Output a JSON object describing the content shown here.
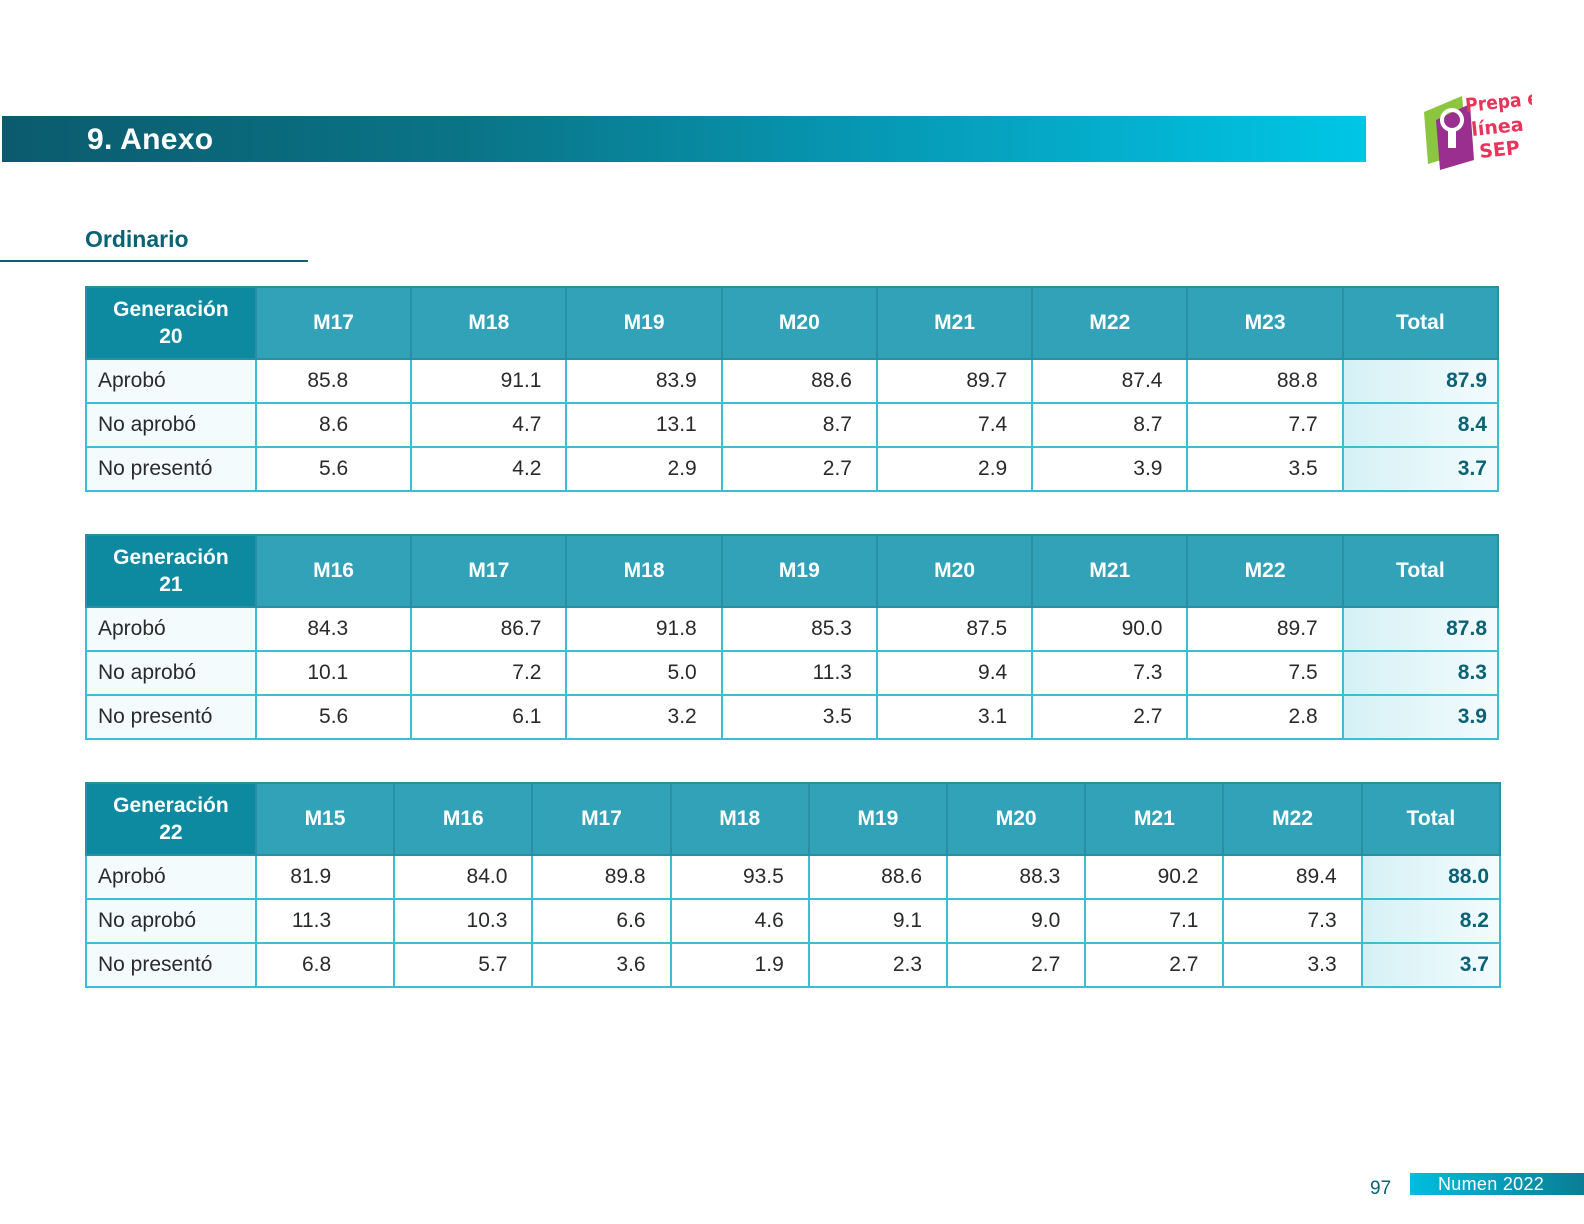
{
  "section": {
    "title": "9. Anexo"
  },
  "logo": {
    "line1": "Prepa en",
    "line2": "línea",
    "line3": "SEP"
  },
  "subtitle": "Ordinario",
  "tables": [
    {
      "generation": [
        "Generación",
        "20"
      ],
      "columns": [
        "M17",
        "M18",
        "M19",
        "M20",
        "M21",
        "M22",
        "M23"
      ],
      "total_label": "Total",
      "rows": [
        {
          "label": "Aprobó",
          "values": [
            "85.8",
            "91.1",
            "83.9",
            "88.6",
            "89.7",
            "87.4",
            "88.8"
          ],
          "total": "87.9"
        },
        {
          "label": "No aprobó",
          "values": [
            "8.6",
            "4.7",
            "13.1",
            "8.7",
            "7.4",
            "8.7",
            "7.7"
          ],
          "total": "8.4"
        },
        {
          "label": "No presentó",
          "values": [
            "5.6",
            "4.2",
            "2.9",
            "2.7",
            "2.9",
            "3.9",
            "3.5"
          ],
          "total": "3.7"
        }
      ]
    },
    {
      "generation": [
        "Generación",
        "21"
      ],
      "columns": [
        "M16",
        "M17",
        "M18",
        "M19",
        "M20",
        "M21",
        "M22"
      ],
      "total_label": "Total",
      "rows": [
        {
          "label": "Aprobó",
          "values": [
            "84.3",
            "86.7",
            "91.8",
            "85.3",
            "87.5",
            "90.0",
            "89.7"
          ],
          "total": "87.8"
        },
        {
          "label": "No aprobó",
          "values": [
            "10.1",
            "7.2",
            "5.0",
            "11.3",
            "9.4",
            "7.3",
            "7.5"
          ],
          "total": "8.3"
        },
        {
          "label": "No presentó",
          "values": [
            "5.6",
            "6.1",
            "3.2",
            "3.5",
            "3.1",
            "2.7",
            "2.8"
          ],
          "total": "3.9"
        }
      ]
    },
    {
      "generation": [
        "Generación",
        "22"
      ],
      "columns": [
        "M15",
        "M16",
        "M17",
        "M18",
        "M19",
        "M20",
        "M21",
        "M22"
      ],
      "total_label": "Total",
      "rows": [
        {
          "label": "Aprobó",
          "values": [
            "81.9",
            "84.0",
            "89.8",
            "93.5",
            "88.6",
            "88.3",
            "90.2",
            "89.4"
          ],
          "total": "88.0"
        },
        {
          "label": "No aprobó",
          "values": [
            "11.3",
            "10.3",
            "6.6",
            "4.6",
            "9.1",
            "9.0",
            "7.1",
            "7.3"
          ],
          "total": "8.2"
        },
        {
          "label": "No presentó",
          "values": [
            "6.8",
            "5.7",
            "3.6",
            "1.9",
            "2.3",
            "2.7",
            "2.7",
            "3.3"
          ],
          "total": "3.7"
        }
      ]
    }
  ],
  "footer": {
    "page": "97",
    "publication": "Numen 2022"
  }
}
